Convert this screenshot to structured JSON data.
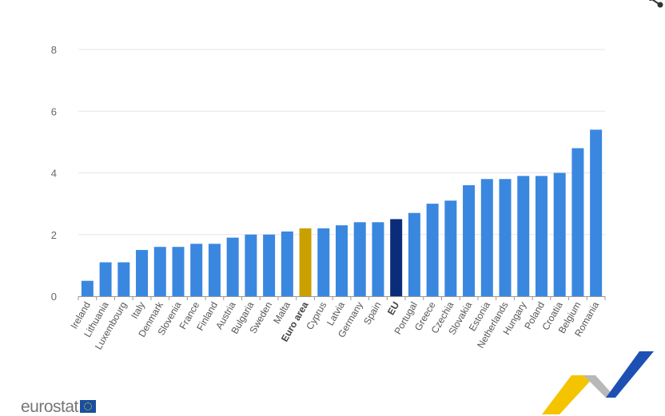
{
  "chart_data": {
    "type": "bar",
    "title": "",
    "xlabel": "",
    "ylabel": "",
    "ylim": [
      0,
      8
    ],
    "yticks": [
      0,
      2,
      4,
      6,
      8
    ],
    "grid": true,
    "categories": [
      "Ireland",
      "Lithuania",
      "Luxembourg",
      "Italy",
      "Denmark",
      "Slovenia",
      "France",
      "Finland",
      "Austria",
      "Bulgaria",
      "Sweden",
      "Malta",
      "Euro area",
      "Cyprus",
      "Latvia",
      "Germany",
      "Spain",
      "EU",
      "Portugal",
      "Greece",
      "Czechia",
      "Slovakia",
      "Estonia",
      "Netherlands",
      "Hungary",
      "Poland",
      "Croatia",
      "Belgium",
      "Romania"
    ],
    "values": [
      0.5,
      1.1,
      1.1,
      1.5,
      1.6,
      1.6,
      1.7,
      1.7,
      1.9,
      2.0,
      2.0,
      2.1,
      2.2,
      2.2,
      2.3,
      2.4,
      2.4,
      2.5,
      2.7,
      3.0,
      3.1,
      3.6,
      3.8,
      3.8,
      3.9,
      3.9,
      4.0,
      4.8,
      5.4
    ],
    "highlight": {
      "Euro area": "#c9a000",
      "EU": "#0a2d7a"
    },
    "bold_labels": [
      "Euro area",
      "EU"
    ],
    "bar_color": "#3a87e0"
  },
  "branding": {
    "logo_text": "eurostat"
  }
}
